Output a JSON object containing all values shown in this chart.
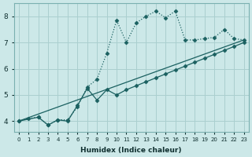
{
  "xlabel": "Humidex (Indice chaleur)",
  "bg_color": "#cce8e8",
  "grid_color": "#aacfcf",
  "line_color": "#1a6060",
  "xlim": [
    -0.5,
    23.5
  ],
  "ylim": [
    3.6,
    8.5
  ],
  "yticks": [
    4,
    5,
    6,
    7,
    8
  ],
  "xticks": [
    0,
    1,
    2,
    3,
    4,
    5,
    6,
    7,
    8,
    9,
    10,
    11,
    12,
    13,
    14,
    15,
    16,
    17,
    18,
    19,
    20,
    21,
    22,
    23
  ],
  "series1_x": [
    0,
    1,
    2,
    3,
    4,
    5,
    6,
    7,
    8,
    9,
    10,
    11,
    12,
    13,
    14,
    15,
    16,
    17,
    18,
    19,
    20,
    21,
    22,
    23
  ],
  "series1_y": [
    4.0,
    4.1,
    4.15,
    3.85,
    4.05,
    4.05,
    4.55,
    5.3,
    5.6,
    6.6,
    7.85,
    7.0,
    7.75,
    8.0,
    8.2,
    7.95,
    8.2,
    7.1,
    7.1,
    7.15,
    7.2,
    7.5,
    7.15,
    7.1
  ],
  "series2_x": [
    0,
    2,
    3,
    4,
    5,
    6,
    7,
    8,
    9,
    10,
    11,
    12,
    13,
    14,
    15,
    16,
    17,
    18,
    19,
    20,
    21,
    22,
    23
  ],
  "series2_y": [
    4.0,
    4.15,
    3.85,
    4.05,
    4.0,
    4.6,
    5.25,
    4.8,
    5.2,
    5.0,
    5.2,
    5.35,
    5.5,
    5.65,
    5.8,
    5.95,
    6.1,
    6.25,
    6.4,
    6.55,
    6.7,
    6.85,
    7.0
  ],
  "series3_x": [
    0,
    23
  ],
  "series3_y": [
    4.0,
    7.1
  ]
}
